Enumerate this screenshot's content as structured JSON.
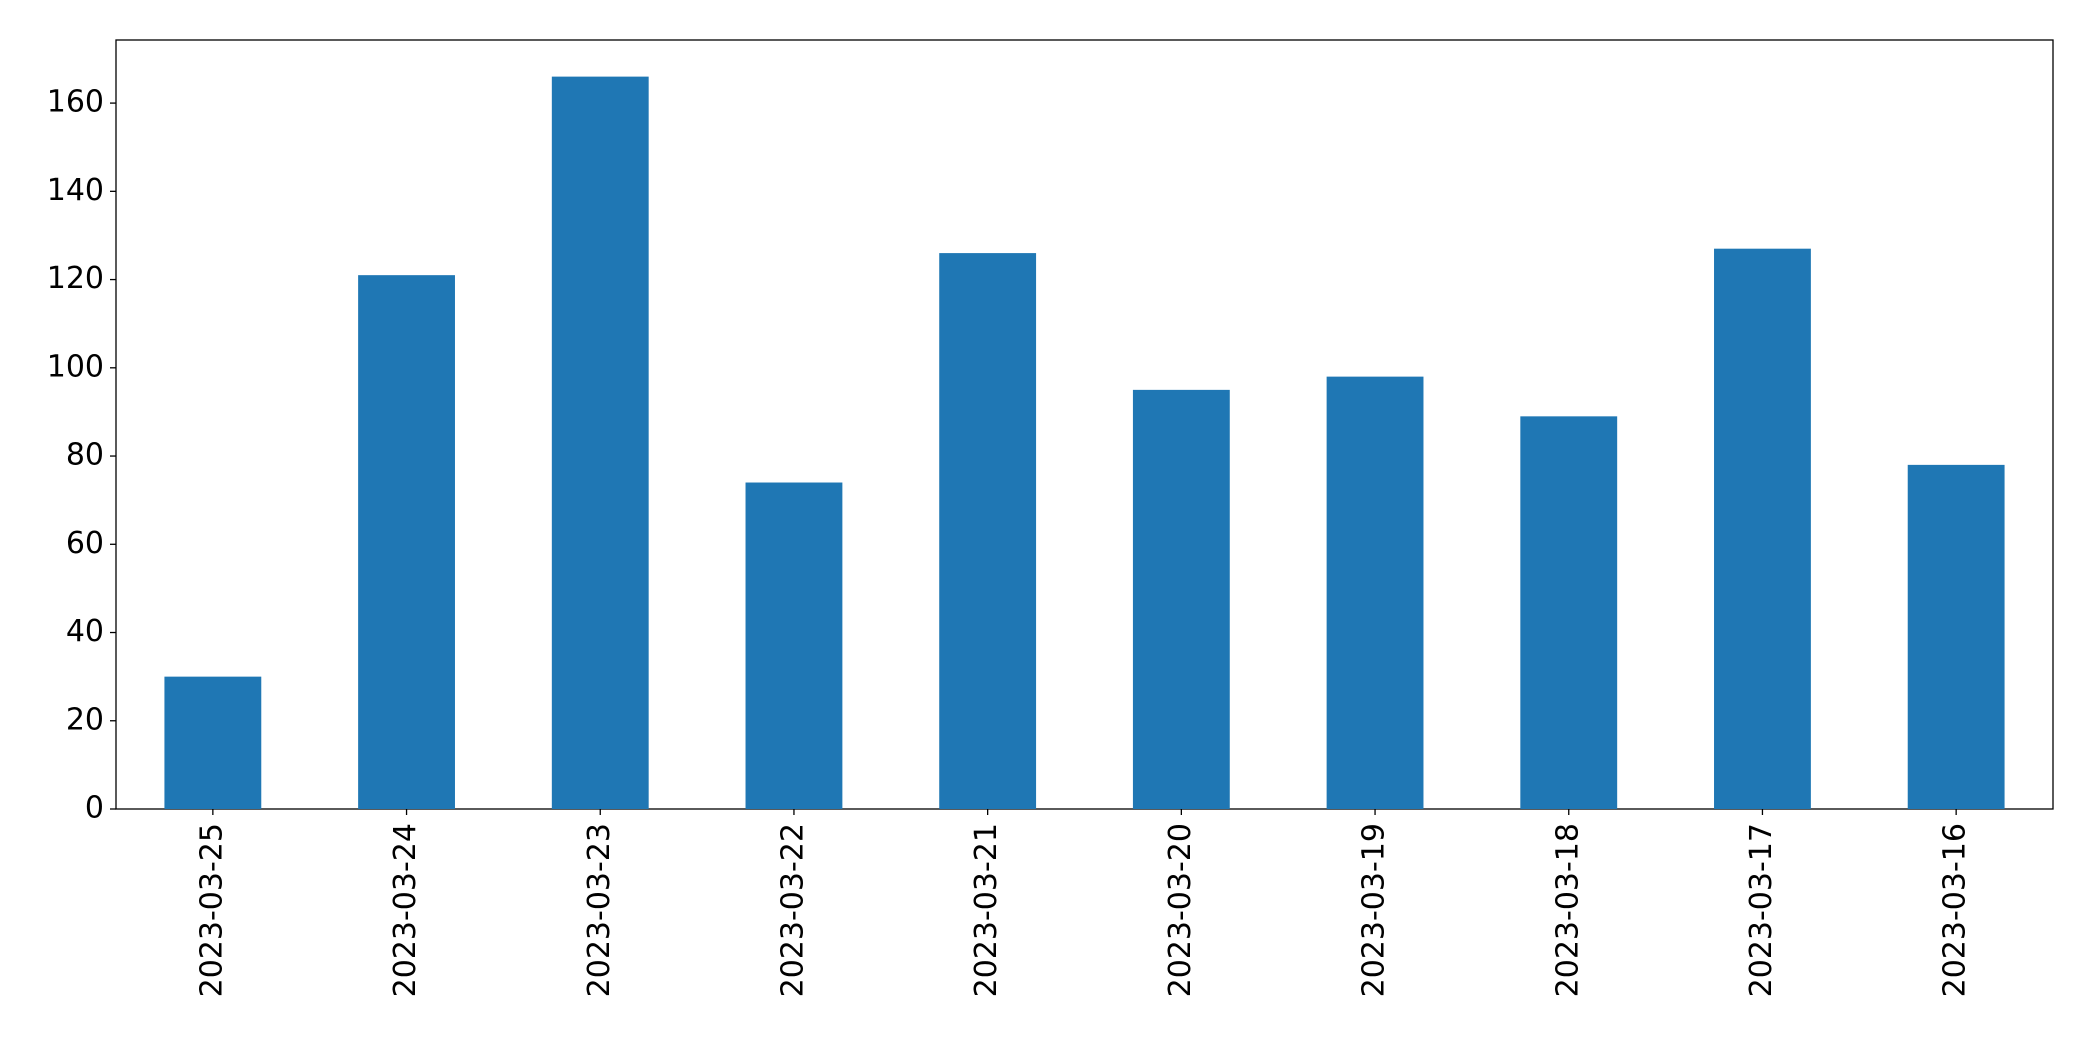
{
  "chart_data": {
    "type": "bar",
    "categories": [
      "2023-03-25",
      "2023-03-24",
      "2023-03-23",
      "2023-03-22",
      "2023-03-21",
      "2023-03-20",
      "2023-03-19",
      "2023-03-18",
      "2023-03-17",
      "2023-03-16"
    ],
    "values": [
      30,
      121,
      166,
      74,
      126,
      95,
      98,
      89,
      127,
      78
    ],
    "color": "#1f77b4",
    "ylim": [
      0,
      174.3
    ],
    "yticks": [
      0,
      20,
      40,
      60,
      80,
      100,
      120,
      140,
      160
    ],
    "grid": false
  }
}
